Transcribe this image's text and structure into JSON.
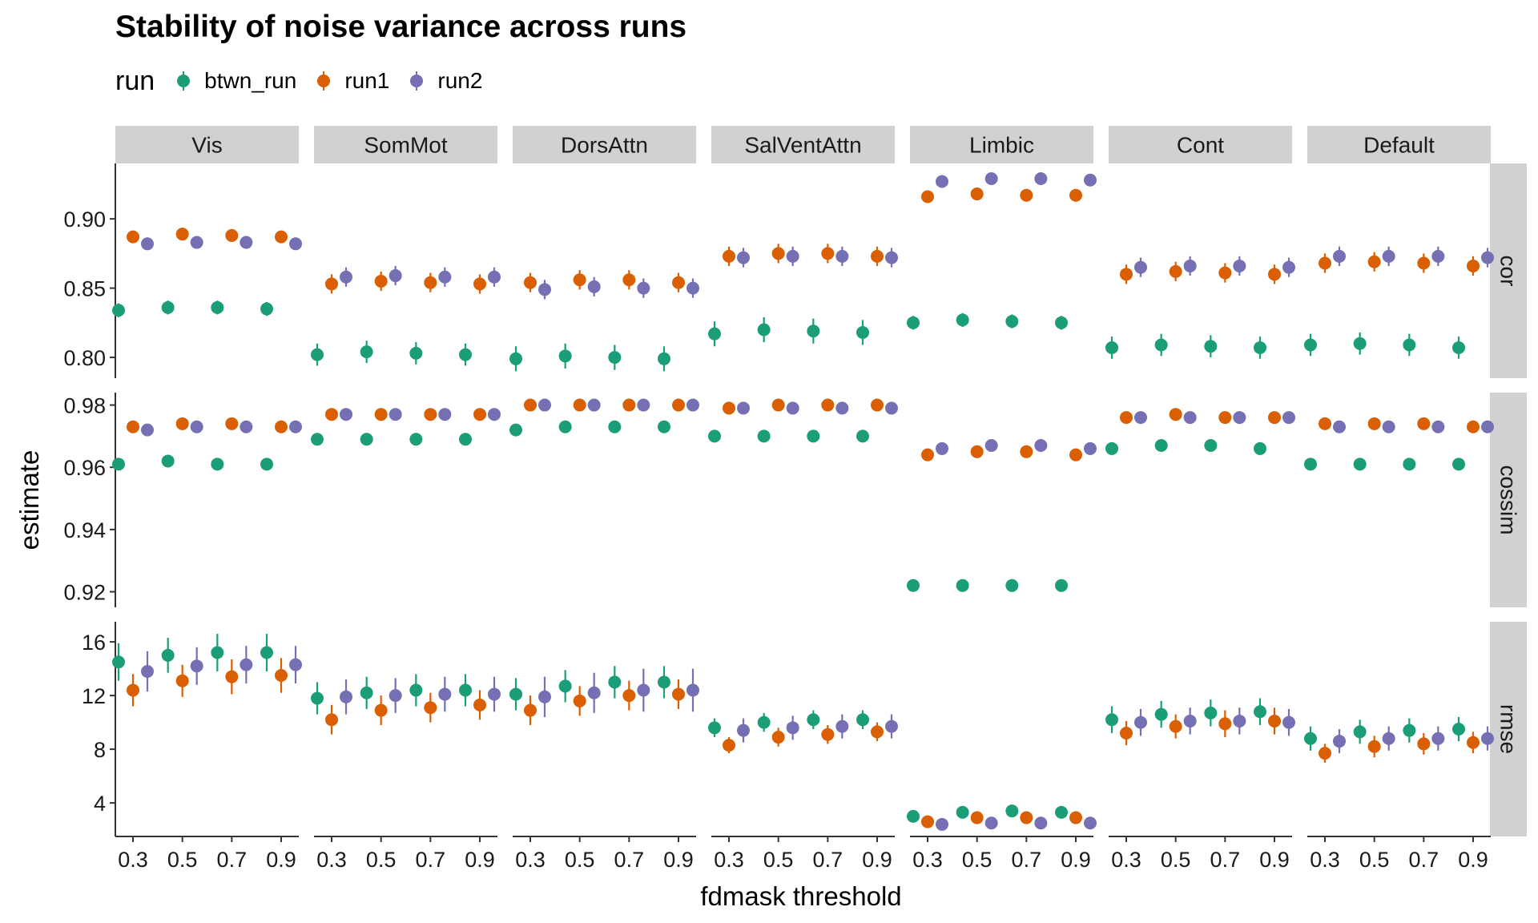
{
  "chart_data": {
    "type": "scatter",
    "title": "Stability of noise variance across runs",
    "xlabel": "fdmask threshold",
    "ylabel": "estimate",
    "legend_title": "run",
    "legend_position": "top-left",
    "grid": false,
    "x_ticks": [
      "0.3",
      "0.5",
      "0.7",
      "0.9"
    ],
    "columns": [
      "Vis",
      "SomMot",
      "DorsAttn",
      "SalVentAttn",
      "Limbic",
      "Cont",
      "Default"
    ],
    "series": [
      {
        "name": "btwn_run",
        "color": "#1B9E77"
      },
      {
        "name": "run1",
        "color": "#D95F02"
      },
      {
        "name": "run2",
        "color": "#7570B3"
      }
    ],
    "rows": [
      {
        "name": "cor",
        "ylim": [
          0.785,
          0.94
        ],
        "yticks": [
          0.8,
          0.85,
          0.9
        ],
        "ytick_labels": [
          "0.80",
          "0.85",
          "0.90"
        ],
        "panels": [
          {
            "btwn_run": [
              0.834,
              0.836,
              0.836,
              0.835
            ],
            "btwn_run_err": [
              0.005,
              0.005,
              0.005,
              0.005
            ],
            "run1": [
              0.887,
              0.889,
              0.888,
              0.887
            ],
            "run1_err": [
              0.004,
              0.004,
              0.004,
              0.004
            ],
            "run2": [
              0.882,
              0.883,
              0.883,
              0.882
            ],
            "run2_err": [
              0.004,
              0.004,
              0.004,
              0.004
            ]
          },
          {
            "btwn_run": [
              0.802,
              0.804,
              0.803,
              0.802
            ],
            "btwn_run_err": [
              0.008,
              0.008,
              0.008,
              0.008
            ],
            "run1": [
              0.853,
              0.855,
              0.854,
              0.853
            ],
            "run1_err": [
              0.007,
              0.007,
              0.007,
              0.007
            ],
            "run2": [
              0.858,
              0.859,
              0.858,
              0.858
            ],
            "run2_err": [
              0.007,
              0.007,
              0.007,
              0.007
            ]
          },
          {
            "btwn_run": [
              0.799,
              0.801,
              0.8,
              0.799
            ],
            "btwn_run_err": [
              0.009,
              0.009,
              0.009,
              0.009
            ],
            "run1": [
              0.854,
              0.856,
              0.856,
              0.854
            ],
            "run1_err": [
              0.007,
              0.007,
              0.007,
              0.007
            ],
            "run2": [
              0.849,
              0.851,
              0.85,
              0.85
            ],
            "run2_err": [
              0.007,
              0.007,
              0.007,
              0.007
            ]
          },
          {
            "btwn_run": [
              0.817,
              0.82,
              0.819,
              0.818
            ],
            "btwn_run_err": [
              0.009,
              0.009,
              0.009,
              0.009
            ],
            "run1": [
              0.873,
              0.875,
              0.875,
              0.873
            ],
            "run1_err": [
              0.007,
              0.007,
              0.007,
              0.007
            ],
            "run2": [
              0.872,
              0.873,
              0.873,
              0.872
            ],
            "run2_err": [
              0.007,
              0.007,
              0.007,
              0.007
            ]
          },
          {
            "btwn_run": [
              0.825,
              0.827,
              0.826,
              0.825
            ],
            "btwn_run_err": [
              0.005,
              0.005,
              0.005,
              0.005
            ],
            "run1": [
              0.916,
              0.918,
              0.917,
              0.917
            ],
            "run1_err": [
              0.003,
              0.003,
              0.003,
              0.003
            ],
            "run2": [
              0.927,
              0.929,
              0.929,
              0.928
            ],
            "run2_err": [
              0.003,
              0.003,
              0.003,
              0.003
            ]
          },
          {
            "btwn_run": [
              0.807,
              0.809,
              0.808,
              0.807
            ],
            "btwn_run_err": [
              0.008,
              0.008,
              0.008,
              0.008
            ],
            "run1": [
              0.86,
              0.862,
              0.861,
              0.86
            ],
            "run1_err": [
              0.007,
              0.007,
              0.007,
              0.007
            ],
            "run2": [
              0.865,
              0.866,
              0.866,
              0.865
            ],
            "run2_err": [
              0.007,
              0.007,
              0.007,
              0.007
            ]
          },
          {
            "btwn_run": [
              0.809,
              0.81,
              0.809,
              0.807
            ],
            "btwn_run_err": [
              0.008,
              0.008,
              0.008,
              0.008
            ],
            "run1": [
              0.868,
              0.869,
              0.868,
              0.866
            ],
            "run1_err": [
              0.007,
              0.007,
              0.007,
              0.007
            ],
            "run2": [
              0.873,
              0.873,
              0.873,
              0.872
            ],
            "run2_err": [
              0.007,
              0.007,
              0.007,
              0.007
            ]
          }
        ]
      },
      {
        "name": "cossim",
        "ylim": [
          0.915,
          0.984
        ],
        "yticks": [
          0.92,
          0.94,
          0.96,
          0.98
        ],
        "ytick_labels": [
          "0.92",
          "0.94",
          "0.96",
          "0.98"
        ],
        "panels": [
          {
            "btwn_run": [
              0.961,
              0.962,
              0.961,
              0.961
            ],
            "btwn_run_err": [
              0.001,
              0.001,
              0.001,
              0.001
            ],
            "run1": [
              0.973,
              0.974,
              0.974,
              0.973
            ],
            "run1_err": [
              0.001,
              0.001,
              0.001,
              0.001
            ],
            "run2": [
              0.972,
              0.973,
              0.973,
              0.973
            ],
            "run2_err": [
              0.001,
              0.001,
              0.001,
              0.001
            ]
          },
          {
            "btwn_run": [
              0.969,
              0.969,
              0.969,
              0.969
            ],
            "btwn_run_err": [
              0.001,
              0.001,
              0.001,
              0.001
            ],
            "run1": [
              0.977,
              0.977,
              0.977,
              0.977
            ],
            "run1_err": [
              0.001,
              0.001,
              0.001,
              0.001
            ],
            "run2": [
              0.977,
              0.977,
              0.977,
              0.977
            ],
            "run2_err": [
              0.001,
              0.001,
              0.001,
              0.001
            ]
          },
          {
            "btwn_run": [
              0.972,
              0.973,
              0.973,
              0.973
            ],
            "btwn_run_err": [
              0.001,
              0.001,
              0.001,
              0.001
            ],
            "run1": [
              0.98,
              0.98,
              0.98,
              0.98
            ],
            "run1_err": [
              0.001,
              0.001,
              0.001,
              0.001
            ],
            "run2": [
              0.98,
              0.98,
              0.98,
              0.98
            ],
            "run2_err": [
              0.001,
              0.001,
              0.001,
              0.001
            ]
          },
          {
            "btwn_run": [
              0.97,
              0.97,
              0.97,
              0.97
            ],
            "btwn_run_err": [
              0.001,
              0.001,
              0.001,
              0.001
            ],
            "run1": [
              0.979,
              0.98,
              0.98,
              0.98
            ],
            "run1_err": [
              0.001,
              0.001,
              0.001,
              0.001
            ],
            "run2": [
              0.979,
              0.979,
              0.979,
              0.979
            ],
            "run2_err": [
              0.001,
              0.001,
              0.001,
              0.001
            ]
          },
          {
            "btwn_run": [
              0.922,
              0.922,
              0.922,
              0.922
            ],
            "btwn_run_err": [
              0.0015,
              0.0015,
              0.0015,
              0.0015
            ],
            "run1": [
              0.964,
              0.965,
              0.965,
              0.964
            ],
            "run1_err": [
              0.001,
              0.001,
              0.001,
              0.001
            ],
            "run2": [
              0.966,
              0.967,
              0.967,
              0.966
            ],
            "run2_err": [
              0.001,
              0.001,
              0.001,
              0.001
            ]
          },
          {
            "btwn_run": [
              0.966,
              0.967,
              0.967,
              0.966
            ],
            "btwn_run_err": [
              0.001,
              0.001,
              0.001,
              0.001
            ],
            "run1": [
              0.976,
              0.977,
              0.976,
              0.976
            ],
            "run1_err": [
              0.001,
              0.001,
              0.001,
              0.001
            ],
            "run2": [
              0.976,
              0.976,
              0.976,
              0.976
            ],
            "run2_err": [
              0.001,
              0.001,
              0.001,
              0.001
            ]
          },
          {
            "btwn_run": [
              0.961,
              0.961,
              0.961,
              0.961
            ],
            "btwn_run_err": [
              0.001,
              0.001,
              0.001,
              0.001
            ],
            "run1": [
              0.974,
              0.974,
              0.974,
              0.973
            ],
            "run1_err": [
              0.001,
              0.001,
              0.001,
              0.001
            ],
            "run2": [
              0.973,
              0.973,
              0.973,
              0.973
            ],
            "run2_err": [
              0.001,
              0.001,
              0.001,
              0.001
            ]
          }
        ]
      },
      {
        "name": "rmse",
        "ylim": [
          1.5,
          17.5
        ],
        "yticks": [
          4,
          8,
          12,
          16
        ],
        "ytick_labels": [
          "4",
          "8",
          "12",
          "16"
        ],
        "panels": [
          {
            "btwn_run": [
              14.5,
              15.0,
              15.2,
              15.2
            ],
            "btwn_run_err": [
              1.4,
              1.3,
              1.4,
              1.4
            ],
            "run1": [
              12.4,
              13.1,
              13.4,
              13.5
            ],
            "run1_err": [
              1.2,
              1.2,
              1.3,
              1.3
            ],
            "run2": [
              13.8,
              14.2,
              14.3,
              14.3
            ],
            "run2_err": [
              1.5,
              1.4,
              1.4,
              1.4
            ]
          },
          {
            "btwn_run": [
              11.8,
              12.2,
              12.4,
              12.4
            ],
            "btwn_run_err": [
              1.2,
              1.2,
              1.2,
              1.2
            ],
            "run1": [
              10.2,
              10.9,
              11.1,
              11.3
            ],
            "run1_err": [
              1.1,
              1.1,
              1.1,
              1.1
            ],
            "run2": [
              11.9,
              12.0,
              12.1,
              12.1
            ],
            "run2_err": [
              1.3,
              1.3,
              1.3,
              1.3
            ]
          },
          {
            "btwn_run": [
              12.1,
              12.7,
              13.0,
              13.0
            ],
            "btwn_run_err": [
              1.2,
              1.2,
              1.2,
              1.2
            ],
            "run1": [
              10.9,
              11.6,
              12.0,
              12.1
            ],
            "run1_err": [
              1.1,
              1.1,
              1.1,
              1.1
            ],
            "run2": [
              11.9,
              12.2,
              12.4,
              12.4
            ],
            "run2_err": [
              1.5,
              1.5,
              1.6,
              1.6
            ]
          },
          {
            "btwn_run": [
              9.6,
              10.0,
              10.2,
              10.2
            ],
            "btwn_run_err": [
              0.7,
              0.7,
              0.7,
              0.7
            ],
            "run1": [
              8.3,
              8.9,
              9.1,
              9.3
            ],
            "run1_err": [
              0.6,
              0.7,
              0.7,
              0.7
            ],
            "run2": [
              9.4,
              9.6,
              9.7,
              9.7
            ],
            "run2_err": [
              0.9,
              0.9,
              0.9,
              0.9
            ]
          },
          {
            "btwn_run": [
              3.0,
              3.3,
              3.4,
              3.3
            ],
            "btwn_run_err": [
              0.3,
              0.3,
              0.3,
              0.3
            ],
            "run1": [
              2.6,
              2.9,
              2.9,
              2.9
            ],
            "run1_err": [
              0.3,
              0.3,
              0.3,
              0.3
            ],
            "run2": [
              2.4,
              2.5,
              2.5,
              2.5
            ],
            "run2_err": [
              0.2,
              0.2,
              0.2,
              0.2
            ]
          },
          {
            "btwn_run": [
              10.2,
              10.6,
              10.7,
              10.8
            ],
            "btwn_run_err": [
              1.0,
              1.0,
              1.0,
              1.0
            ],
            "run1": [
              9.2,
              9.7,
              9.9,
              10.1
            ],
            "run1_err": [
              0.9,
              0.9,
              1.0,
              1.0
            ],
            "run2": [
              10.0,
              10.1,
              10.1,
              10.0
            ],
            "run2_err": [
              1.0,
              1.0,
              1.0,
              1.0
            ]
          },
          {
            "btwn_run": [
              8.8,
              9.3,
              9.4,
              9.5
            ],
            "btwn_run_err": [
              0.9,
              0.9,
              0.9,
              0.9
            ],
            "run1": [
              7.7,
              8.2,
              8.4,
              8.5
            ],
            "run1_err": [
              0.7,
              0.8,
              0.8,
              0.8
            ],
            "run2": [
              8.6,
              8.8,
              8.8,
              8.8
            ],
            "run2_err": [
              0.9,
              0.9,
              0.9,
              0.9
            ]
          }
        ]
      }
    ]
  }
}
